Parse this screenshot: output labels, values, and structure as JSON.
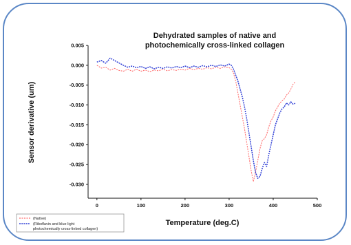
{
  "chart_data": {
    "type": "line",
    "title_lines": [
      "Dehydrated samples of native and",
      "photochemically cross-linked collagen"
    ],
    "xlabel": "Temperature (deg.C)",
    "ylabel": "Sensor derivative (um)",
    "xlim": [
      -20,
      500
    ],
    "ylim": [
      -0.0335,
      0.005
    ],
    "xticks": [
      "0",
      "100",
      "200",
      "300",
      "400",
      "500"
    ],
    "yticks": [
      "0.005",
      "0.000",
      "-0.005",
      "-0.010",
      "-0.015",
      "-0.020",
      "-0.025",
      "-0.030"
    ],
    "legend_position": "bottom-left",
    "series": [
      {
        "name": "(Native)",
        "color": "#ff6f6f",
        "dash": "2,1.5",
        "points": [
          [
            0,
            0.0
          ],
          [
            10,
            -0.0007
          ],
          [
            20,
            -0.0005
          ],
          [
            30,
            -0.0012
          ],
          [
            40,
            -0.0008
          ],
          [
            50,
            -0.0013
          ],
          [
            60,
            -0.0015
          ],
          [
            70,
            -0.001
          ],
          [
            80,
            -0.0015
          ],
          [
            90,
            -0.001
          ],
          [
            100,
            -0.0015
          ],
          [
            110,
            -0.0012
          ],
          [
            120,
            -0.0016
          ],
          [
            130,
            -0.0012
          ],
          [
            140,
            -0.0014
          ],
          [
            150,
            -0.001
          ],
          [
            160,
            -0.0014
          ],
          [
            170,
            -0.0011
          ],
          [
            180,
            -0.0013
          ],
          [
            190,
            -0.001
          ],
          [
            200,
            -0.0012
          ],
          [
            210,
            -0.0008
          ],
          [
            220,
            -0.0011
          ],
          [
            230,
            -0.0008
          ],
          [
            240,
            -0.001
          ],
          [
            250,
            -0.0006
          ],
          [
            260,
            -0.0009
          ],
          [
            270,
            -0.0005
          ],
          [
            280,
            -0.0008
          ],
          [
            290,
            -0.0004
          ],
          [
            300,
            -0.0006
          ],
          [
            305,
            -0.001
          ],
          [
            310,
            -0.002
          ],
          [
            315,
            -0.004
          ],
          [
            320,
            -0.007
          ],
          [
            325,
            -0.01
          ],
          [
            330,
            -0.013
          ],
          [
            335,
            -0.016
          ],
          [
            340,
            -0.0195
          ],
          [
            345,
            -0.023
          ],
          [
            350,
            -0.0265
          ],
          [
            355,
            -0.0293
          ],
          [
            360,
            -0.027
          ],
          [
            365,
            -0.024
          ],
          [
            370,
            -0.021
          ],
          [
            375,
            -0.019
          ],
          [
            380,
            -0.0185
          ],
          [
            385,
            -0.0175
          ],
          [
            390,
            -0.0155
          ],
          [
            395,
            -0.014
          ],
          [
            400,
            -0.013
          ],
          [
            405,
            -0.0115
          ],
          [
            410,
            -0.0105
          ],
          [
            415,
            -0.0095
          ],
          [
            420,
            -0.009
          ],
          [
            425,
            -0.0085
          ],
          [
            430,
            -0.0075
          ],
          [
            435,
            -0.007
          ],
          [
            440,
            -0.006
          ],
          [
            445,
            -0.0048
          ],
          [
            450,
            -0.0042
          ]
        ]
      },
      {
        "name": "(Riboflavin and blue light photochemically cross-linked collagen)",
        "color": "#2f3fd6",
        "dash": "2,1.2",
        "points": [
          [
            0,
            0.0008
          ],
          [
            10,
            0.0012
          ],
          [
            20,
            0.0005
          ],
          [
            30,
            0.0018
          ],
          [
            40,
            0.0012
          ],
          [
            50,
            0.0006
          ],
          [
            60,
            0.0
          ],
          [
            70,
            -0.0005
          ],
          [
            80,
            -0.0002
          ],
          [
            90,
            -0.0006
          ],
          [
            100,
            -0.0003
          ],
          [
            110,
            -0.0008
          ],
          [
            120,
            -0.0004
          ],
          [
            130,
            -0.0009
          ],
          [
            140,
            -0.0005
          ],
          [
            150,
            -0.0008
          ],
          [
            160,
            -0.0004
          ],
          [
            170,
            -0.0007
          ],
          [
            180,
            -0.0003
          ],
          [
            190,
            -0.0006
          ],
          [
            200,
            -0.0002
          ],
          [
            210,
            -0.0006
          ],
          [
            220,
            -0.0002
          ],
          [
            230,
            -0.0005
          ],
          [
            240,
            -0.0001
          ],
          [
            250,
            -0.0004
          ],
          [
            260,
            0.0
          ],
          [
            270,
            -0.0003
          ],
          [
            280,
            0.0001
          ],
          [
            290,
            -0.0002
          ],
          [
            300,
            0.0003
          ],
          [
            305,
            0.0
          ],
          [
            310,
            -0.001
          ],
          [
            315,
            -0.0025
          ],
          [
            320,
            -0.004
          ],
          [
            325,
            -0.006
          ],
          [
            330,
            -0.008
          ],
          [
            335,
            -0.0105
          ],
          [
            340,
            -0.0135
          ],
          [
            345,
            -0.017
          ],
          [
            350,
            -0.0205
          ],
          [
            355,
            -0.024
          ],
          [
            360,
            -0.027
          ],
          [
            365,
            -0.0285
          ],
          [
            370,
            -0.028
          ],
          [
            375,
            -0.026
          ],
          [
            380,
            -0.0245
          ],
          [
            385,
            -0.0255
          ],
          [
            390,
            -0.0225
          ],
          [
            395,
            -0.02
          ],
          [
            400,
            -0.0175
          ],
          [
            405,
            -0.015
          ],
          [
            410,
            -0.0135
          ],
          [
            415,
            -0.012
          ],
          [
            420,
            -0.011
          ],
          [
            425,
            -0.0105
          ],
          [
            430,
            -0.0095
          ],
          [
            435,
            -0.01
          ],
          [
            440,
            -0.0092
          ],
          [
            445,
            -0.0098
          ],
          [
            450,
            -0.0096
          ]
        ]
      }
    ]
  },
  "legend": {
    "items": [
      {
        "lines": [
          "(Native)"
        ]
      },
      {
        "lines": [
          "(Riboflavin and blue light",
          "photochemically cross-linked collagen)"
        ]
      }
    ]
  }
}
